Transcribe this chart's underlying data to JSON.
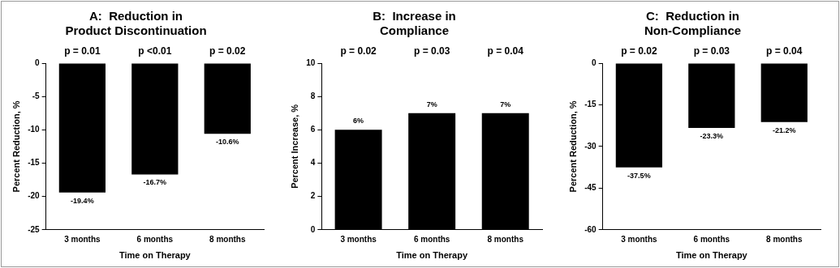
{
  "chart_data": [
    {
      "type": "bar",
      "title": "A:  Reduction in\nProduct Discontinuation",
      "xlabel": "Time on Therapy",
      "ylabel": "Percent Reduction, %",
      "categories": [
        "3 months",
        "6 months",
        "8 months"
      ],
      "values": [
        -19.4,
        -16.7,
        -10.6
      ],
      "value_labels": [
        "-19.4%",
        "-16.7%",
        "-10.6%"
      ],
      "color": "#000000",
      "ylim": [
        -25,
        0
      ],
      "yticks": [
        -25,
        -20,
        -15,
        -10,
        -5,
        0
      ],
      "grid": false,
      "legend": false,
      "annotations": [
        "p = 0.01",
        "p <0.01",
        "p = 0.02"
      ]
    },
    {
      "type": "bar",
      "title": "B:  Increase in\nCompliance",
      "xlabel": "Time on Therapy",
      "ylabel": "Percent Increase, %",
      "categories": [
        "3 months",
        "6 months",
        "8 months"
      ],
      "values": [
        6,
        7,
        7
      ],
      "value_labels": [
        "6%",
        "7%",
        "7%"
      ],
      "color": "#000000",
      "ylim": [
        0,
        10
      ],
      "yticks": [
        0,
        2,
        4,
        6,
        8,
        10
      ],
      "grid": false,
      "legend": false,
      "annotations": [
        "p = 0.02",
        "p = 0.03",
        "p = 0.04"
      ]
    },
    {
      "type": "bar",
      "title": "C:  Reduction in\nNon-Compliance",
      "xlabel": "Time on Therapy",
      "ylabel": "Percent Reduction, %",
      "categories": [
        "3 months",
        "6 months",
        "8 months"
      ],
      "values": [
        -37.5,
        -23.3,
        -21.2
      ],
      "value_labels": [
        "-37.5%",
        "-23.3%",
        "-21.2%"
      ],
      "color": "#000000",
      "ylim": [
        -60,
        0
      ],
      "yticks": [
        -60,
        -45,
        -30,
        -15,
        0
      ],
      "grid": false,
      "legend": false,
      "annotations": [
        "p = 0.02",
        "p = 0.03",
        "p = 0.04"
      ]
    }
  ]
}
